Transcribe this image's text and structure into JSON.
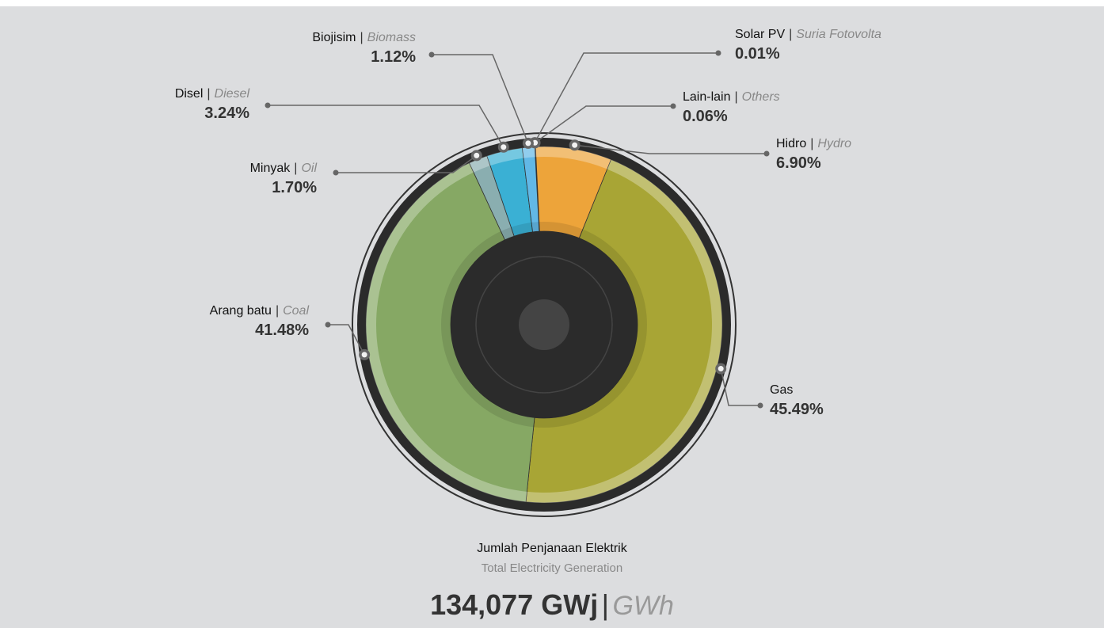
{
  "chart_data": {
    "type": "donut",
    "categories": [
      "Solar PV",
      "Lain-lain",
      "Hidro",
      "Gas",
      "Arang batu",
      "Minyak",
      "Disel",
      "Biojisim"
    ],
    "categories_en": [
      "Suria Fotovolta",
      "Others",
      "Hydro",
      null,
      "Coal",
      "Oil",
      "Diesel",
      "Biomass"
    ],
    "separator": "|",
    "values": [
      0.01,
      0.06,
      6.9,
      45.49,
      41.48,
      1.7,
      3.24,
      1.12
    ],
    "value_labels": [
      "0.01%",
      "0.06%",
      "6.90%",
      "45.49%",
      "41.48%",
      "1.70%",
      "3.24%",
      "1.12%"
    ],
    "colors": [
      "#e0574a",
      "#e0874a",
      "#eda43a",
      "#a8a535",
      "#86a864",
      "#8aaeb0",
      "#3ab0d4",
      "#62b8e6"
    ],
    "total_title": "Jumlah Penjanaan Elektrik",
    "total_subtitle": "Total Electricity Generation",
    "total_label": "134,077 GWj",
    "total_label_en": "GWh"
  }
}
